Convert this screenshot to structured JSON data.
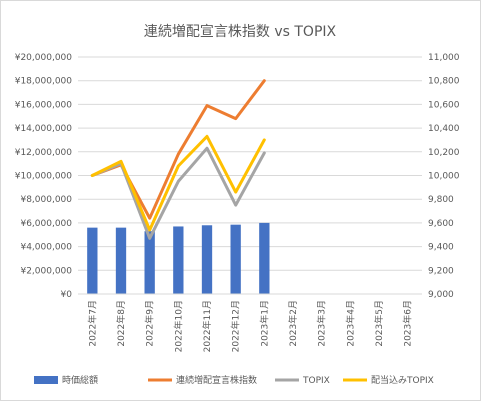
{
  "chart_data": {
    "type": "bar",
    "title": "連続増配宣言株指数 vs TOPIX",
    "categories": [
      "2022年7月",
      "2022年8月",
      "2022年9月",
      "2022年10月",
      "2022年11月",
      "2022年12月",
      "2023年1月",
      "2023年2月",
      "2023年3月",
      "2023年4月",
      "2023年5月",
      "2023年6月"
    ],
    "y_left": {
      "ylim": [
        0,
        20000000
      ],
      "ticks": [
        0,
        2000000,
        4000000,
        6000000,
        8000000,
        10000000,
        12000000,
        14000000,
        16000000,
        18000000,
        20000000
      ],
      "tick_labels": [
        "¥0",
        "¥2,000,000",
        "¥4,000,000",
        "¥6,000,000",
        "¥8,000,000",
        "¥10,000,000",
        "¥12,000,000",
        "¥14,000,000",
        "¥16,000,000",
        "¥18,000,000",
        "¥20,000,000"
      ]
    },
    "y_right": {
      "ylim": [
        9000,
        11000
      ],
      "ticks": [
        9000,
        9200,
        9400,
        9600,
        9800,
        10000,
        10200,
        10400,
        10600,
        10800,
        11000
      ],
      "tick_labels": [
        "9,000",
        "9,200",
        "9,400",
        "9,600",
        "9,800",
        "10,000",
        "10,200",
        "10,400",
        "10,600",
        "10,800",
        "11,000"
      ]
    },
    "grid": true,
    "legend_position": "bottom",
    "series": [
      {
        "name": "時価総額",
        "kind": "bar",
        "axis": "left",
        "color": "#4472C4",
        "values": [
          5600000,
          5600000,
          5300000,
          5700000,
          5800000,
          5850000,
          6000000,
          null,
          null,
          null,
          null,
          null
        ]
      },
      {
        "name": "連続増配宣言株指数",
        "kind": "line",
        "axis": "right",
        "color": "#ED7D31",
        "values": [
          10000,
          10090,
          9640,
          10180,
          10590,
          10480,
          10800,
          null,
          null,
          null,
          null,
          null
        ]
      },
      {
        "name": "TOPIX",
        "kind": "line",
        "axis": "right",
        "color": "#A5A5A5",
        "values": [
          10000,
          10100,
          9470,
          9950,
          10230,
          9750,
          10190,
          null,
          null,
          null,
          null,
          null
        ]
      },
      {
        "name": "配当込みTOPIX",
        "kind": "line",
        "axis": "right",
        "color": "#FFC000",
        "values": [
          10000,
          10120,
          9540,
          10080,
          10330,
          9860,
          10300,
          null,
          null,
          null,
          null,
          null
        ]
      }
    ]
  }
}
